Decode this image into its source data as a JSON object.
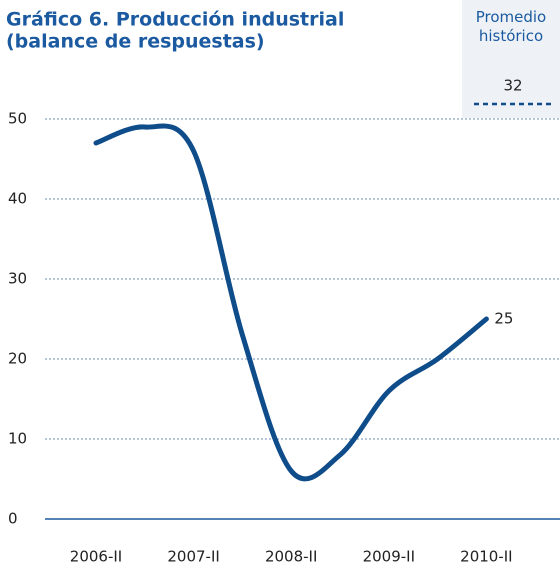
{
  "chart_data": {
    "type": "line",
    "title": "Gráfico 6. Producción industrial",
    "subtitle": "(balance de respuestas)",
    "categories": [
      "2006-II",
      null,
      "2007-II",
      null,
      "2008-II",
      null,
      "2009-II",
      null,
      "2010-II"
    ],
    "series": [
      {
        "name": "Producción industrial",
        "color": "#0f4c8a",
        "values": [
          47,
          49,
          46,
          23,
          6,
          8,
          16,
          20,
          25
        ]
      }
    ],
    "ylim": [
      0,
      50
    ],
    "yticks": [
      0,
      10,
      20,
      30,
      40,
      50
    ],
    "grid": true,
    "reference": {
      "label": "Promedio histórico",
      "value": 32
    }
  }
}
